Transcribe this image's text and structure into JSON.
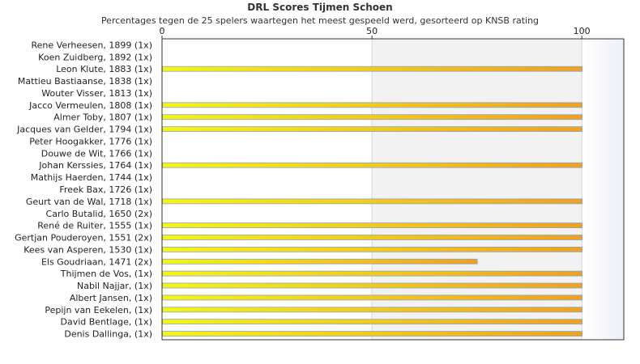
{
  "chart_data": {
    "type": "bar",
    "orientation": "horizontal",
    "title": "DRL Scores Tijmen Schoen",
    "subtitle": "Percentages tegen de 25 spelers waartegen het meest gespeeld werd, gesorteerd op KNSB rating",
    "xlim": [
      0,
      110
    ],
    "xticks": [
      0,
      50,
      100
    ],
    "grid": true,
    "categories": [
      "Rene Verheesen, 1899 (1x)",
      "Koen Zuidberg, 1892 (1x)",
      "Leon Klute, 1883 (1x)",
      "Mattieu Bastiaanse, 1838 (1x)",
      "Wouter Visser, 1813 (1x)",
      "Jacco Vermeulen, 1808 (1x)",
      "Almer Toby, 1807 (1x)",
      "Jacques van Gelder, 1794 (1x)",
      "Peter Hoogakker, 1776 (1x)",
      "Douwe de Wit, 1766 (1x)",
      "Johan Kerssies, 1764 (1x)",
      "Mathijs Haerden, 1744 (1x)",
      "Freek Bax, 1726 (1x)",
      "Geurt van de Wal, 1718 (1x)",
      "Carlo Butalid, 1650 (2x)",
      "René de Ruiter, 1555 (1x)",
      "Gertjan Pouderoyen, 1551 (2x)",
      "Kees van Asperen, 1530 (1x)",
      "Els Goudriaan, 1471 (2x)",
      "Thijmen de Vos,  (1x)",
      "Nabil Najjar,  (1x)",
      "Albert Jansen,  (1x)",
      "Pepijn van Eekelen,  (1x)",
      "David Bentlage,  (1x)",
      "Denis Dallinga,  (1x)"
    ],
    "values": [
      0,
      0,
      100,
      0,
      0,
      100,
      100,
      100,
      0,
      0,
      100,
      0,
      0,
      100,
      0,
      100,
      100,
      100,
      75,
      100,
      100,
      100,
      100,
      100,
      100
    ],
    "colors": {
      "bar_start": "#f5f514",
      "bar_end": "#f0a020",
      "bar_border": "#8aa4c8",
      "band": "#f2f2f2",
      "axis": "#333333"
    }
  }
}
